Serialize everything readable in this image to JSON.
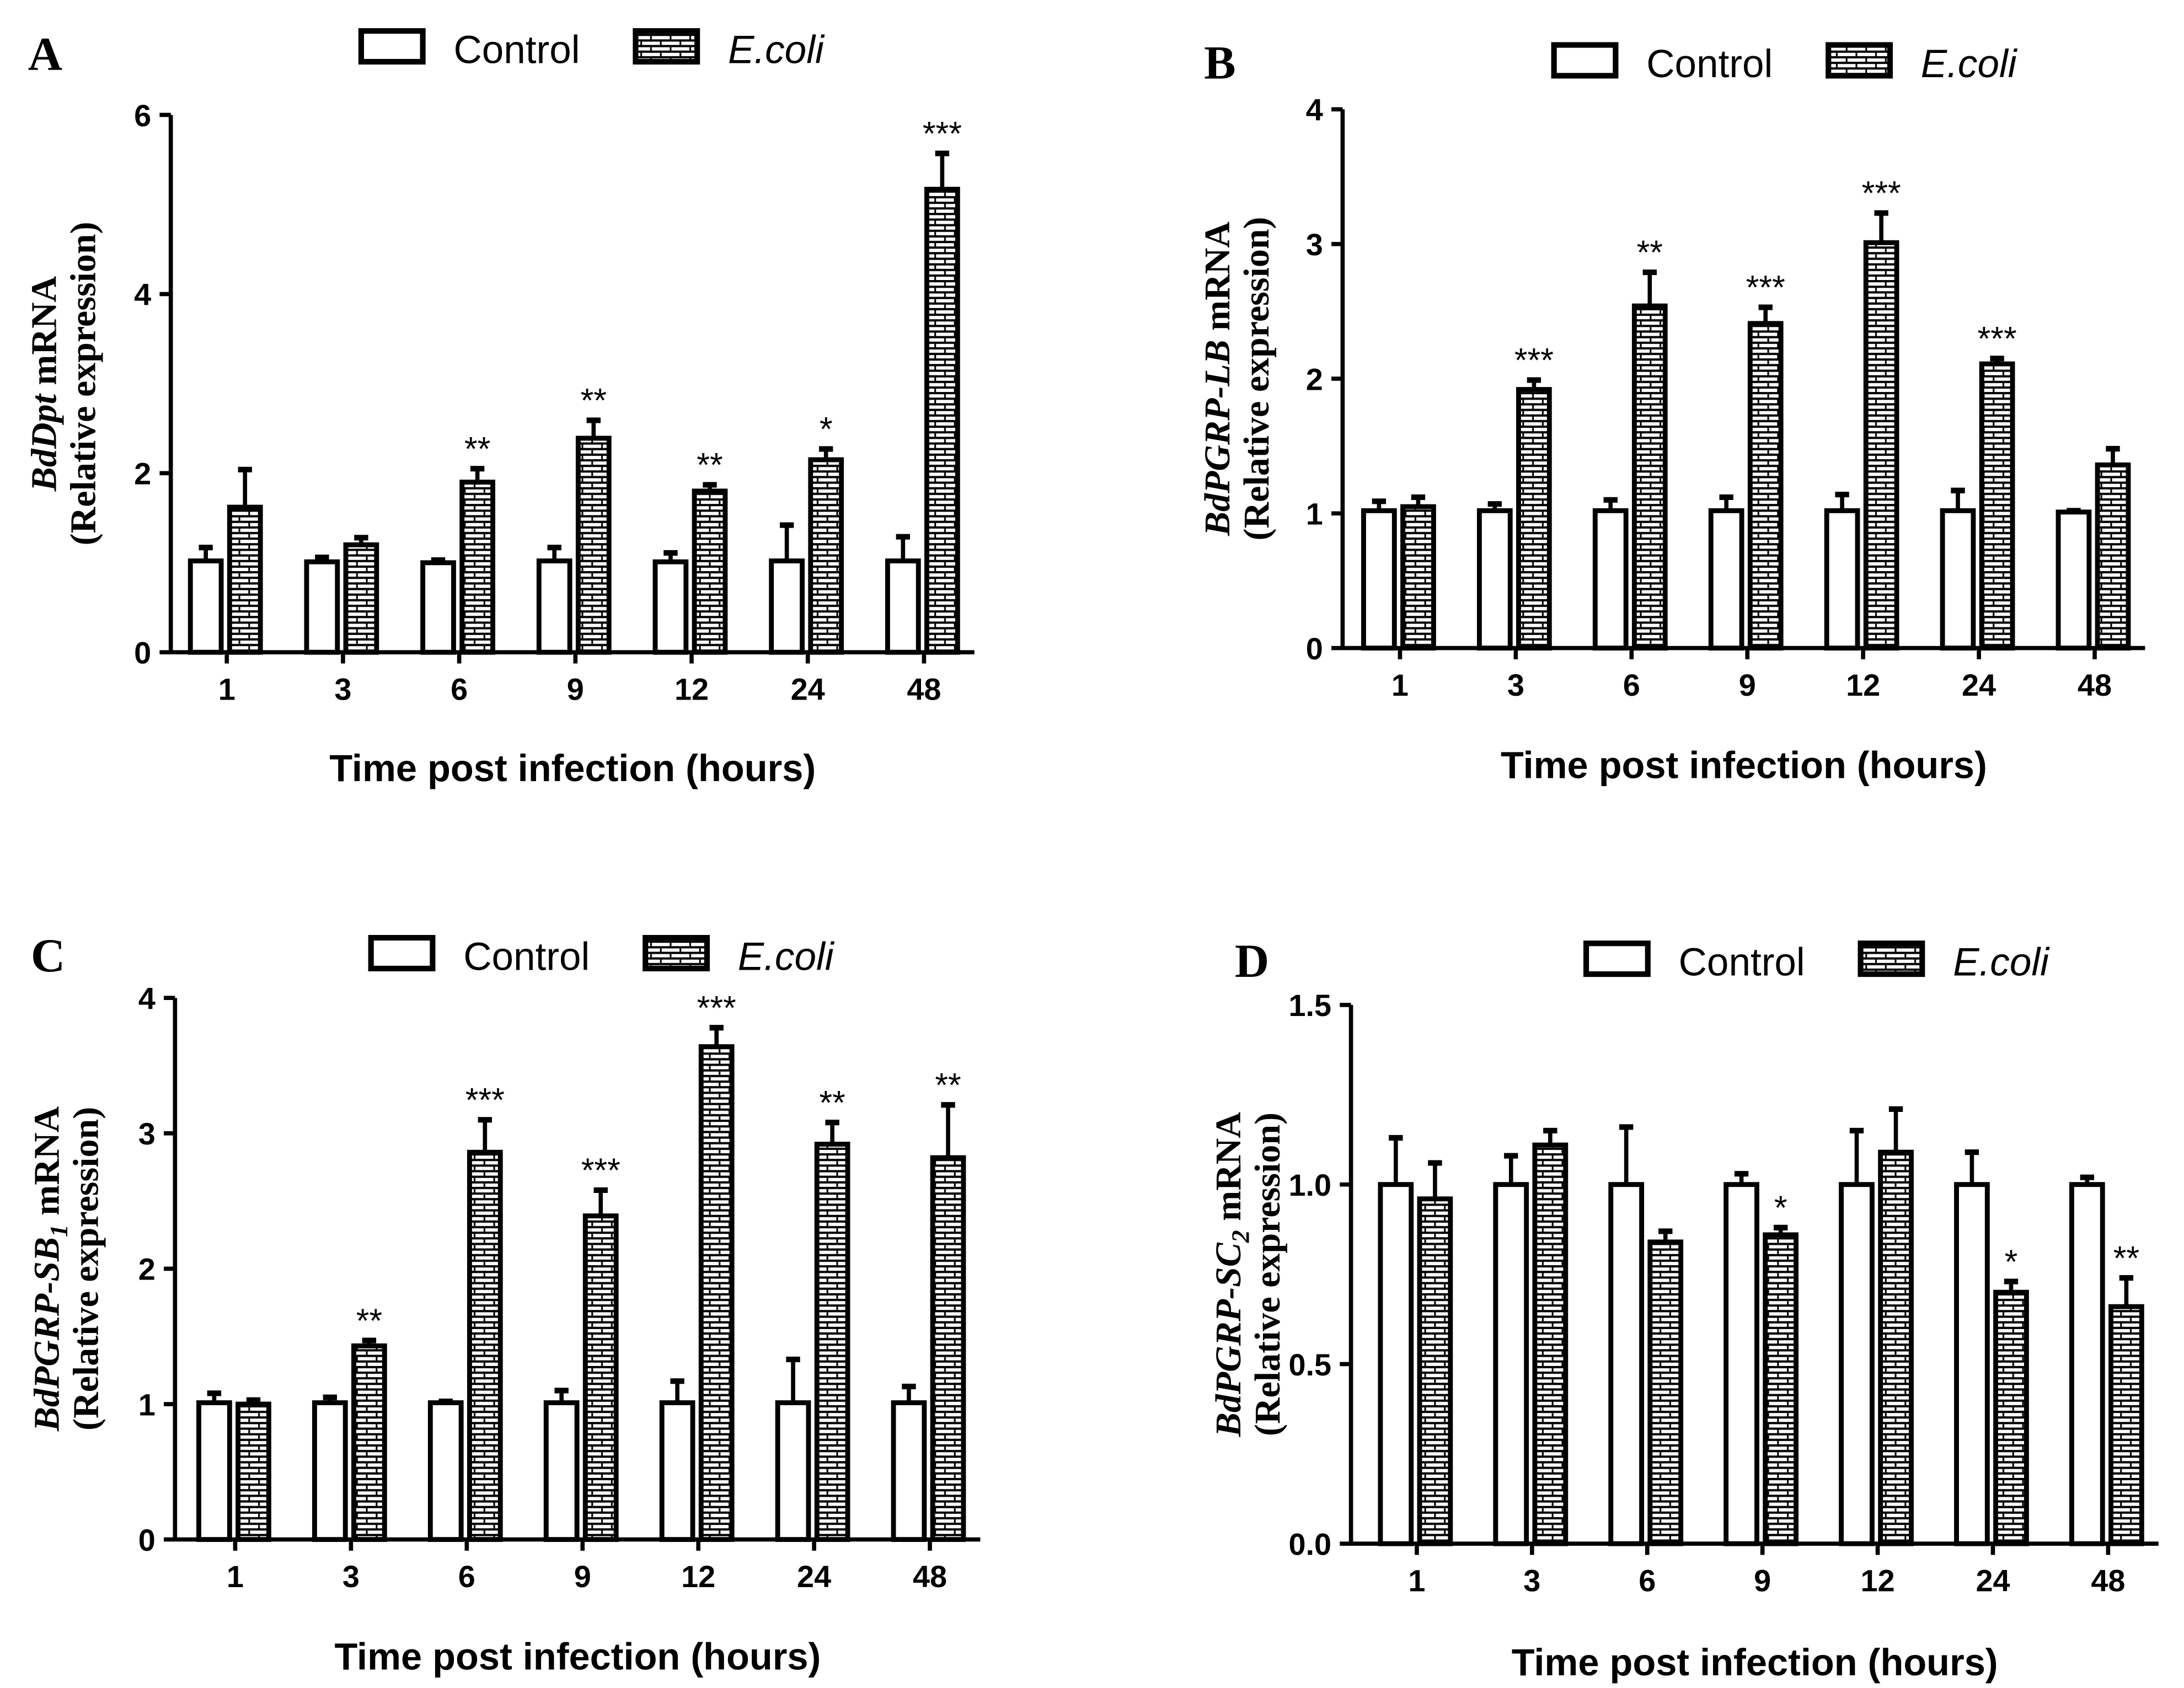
{
  "legend": {
    "control": "Control",
    "treated": "E.coli"
  },
  "chart_data": [
    {
      "type": "bar",
      "panel": "A",
      "ylabel_gene": "BdDpt",
      "ylabel_sub": "",
      "ylabel_suffix": " mRNA",
      "ylabel_line2": "(Relative expression)",
      "xlabel": "Time post infection (hours)",
      "ylim": [
        0,
        6
      ],
      "yticks": [
        "0",
        "2",
        "4",
        "6"
      ],
      "categories": [
        "1",
        "3",
        "6",
        "9",
        "12",
        "24",
        "48"
      ],
      "series": [
        {
          "name": "Control",
          "values": [
            1.02,
            1.01,
            1.0,
            1.02,
            1.01,
            1.02,
            1.02
          ],
          "errors": [
            0.15,
            0.05,
            0.03,
            0.15,
            0.1,
            0.4,
            0.27
          ]
        },
        {
          "name": "E.coli",
          "values": [
            1.62,
            1.2,
            1.9,
            2.39,
            1.8,
            2.15,
            5.17
          ],
          "errors": [
            0.42,
            0.08,
            0.15,
            0.2,
            0.07,
            0.12,
            0.4
          ]
        }
      ],
      "significance": [
        "",
        "",
        "**",
        "**",
        "**",
        "*",
        "***"
      ]
    },
    {
      "type": "bar",
      "panel": "B",
      "ylabel_gene": "BdPGRP-LB",
      "ylabel_sub": "",
      "ylabel_suffix": " mRNA",
      "ylabel_line2": "(Relative expression)",
      "xlabel": "Time post infection (hours)",
      "ylim": [
        0,
        4
      ],
      "yticks": [
        "0",
        "1",
        "2",
        "3",
        "4"
      ],
      "categories": [
        "1",
        "3",
        "6",
        "9",
        "12",
        "24",
        "48"
      ],
      "series": [
        {
          "name": "Control",
          "values": [
            1.02,
            1.02,
            1.02,
            1.02,
            1.02,
            1.02,
            1.01
          ],
          "errors": [
            0.07,
            0.05,
            0.08,
            0.1,
            0.12,
            0.15,
            0.01
          ]
        },
        {
          "name": "E.coli",
          "values": [
            1.05,
            1.92,
            2.54,
            2.41,
            3.01,
            2.11,
            1.36
          ],
          "errors": [
            0.07,
            0.07,
            0.25,
            0.12,
            0.22,
            0.04,
            0.12
          ]
        }
      ],
      "significance": [
        "",
        "***",
        "**",
        "***",
        "***",
        "***",
        ""
      ]
    },
    {
      "type": "bar",
      "panel": "C",
      "ylabel_gene": "BdPGRP-SB",
      "ylabel_sub": "1",
      "ylabel_suffix": " mRNA",
      "ylabel_line2": "(Relative expression)",
      "xlabel": "Time post infection (hours)",
      "ylim": [
        0,
        4
      ],
      "yticks": [
        "0",
        "1",
        "2",
        "3",
        "4"
      ],
      "categories": [
        "1",
        "3",
        "6",
        "9",
        "12",
        "24",
        "48"
      ],
      "series": [
        {
          "name": "Control",
          "values": [
            1.01,
            1.01,
            1.01,
            1.01,
            1.01,
            1.01,
            1.01
          ],
          "errors": [
            0.07,
            0.04,
            0.01,
            0.09,
            0.16,
            0.32,
            0.12
          ]
        },
        {
          "name": "E.coli",
          "values": [
            1.0,
            1.43,
            2.86,
            2.39,
            3.64,
            2.92,
            2.82
          ],
          "errors": [
            0.03,
            0.04,
            0.24,
            0.19,
            0.14,
            0.16,
            0.39
          ]
        }
      ],
      "significance": [
        "",
        "**",
        "***",
        "***",
        "***",
        "**",
        "**"
      ]
    },
    {
      "type": "bar",
      "panel": "D",
      "ylabel_gene": "BdPGRP-SC",
      "ylabel_sub": "2",
      "ylabel_suffix": " mRNA",
      "ylabel_line2": "(Relative expression)",
      "xlabel": "Time post infection (hours)",
      "ylim": [
        0,
        1.5
      ],
      "yticks": [
        "0.0",
        "0.5",
        "1.0",
        "1.5"
      ],
      "categories": [
        "1",
        "3",
        "6",
        "9",
        "12",
        "24",
        "48"
      ],
      "series": [
        {
          "name": "Control",
          "values": [
            1.0,
            1.0,
            1.0,
            1.0,
            1.0,
            1.0,
            1.0
          ],
          "errors": [
            0.13,
            0.08,
            0.16,
            0.03,
            0.15,
            0.09,
            0.02
          ]
        },
        {
          "name": "E.coli",
          "values": [
            0.96,
            1.11,
            0.84,
            0.86,
            1.09,
            0.7,
            0.66
          ],
          "errors": [
            0.1,
            0.04,
            0.03,
            0.02,
            0.12,
            0.03,
            0.08
          ]
        }
      ],
      "significance": [
        "",
        "",
        "",
        "*",
        "",
        "*",
        "**"
      ]
    }
  ]
}
